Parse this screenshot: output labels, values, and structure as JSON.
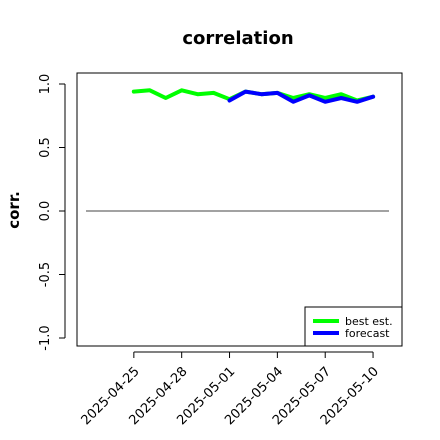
{
  "chart_data": {
    "type": "line",
    "title": "correlation",
    "ylabel": "corr.",
    "xlabel": "",
    "x_ticks": [
      {
        "date": "2025-04-25",
        "label": "2025-04-25",
        "color": "#000000"
      },
      {
        "date": "2025-04-28",
        "label": "2025-04-28",
        "color": "#000000"
      },
      {
        "date": "2025-05-01",
        "label": "2025-05-01",
        "color": "#228B22"
      },
      {
        "date": "2025-05-04",
        "label": "2025-05-04",
        "color": "#000000"
      },
      {
        "date": "2025-05-07",
        "label": "2025-05-07",
        "color": "#000000"
      },
      {
        "date": "2025-05-10",
        "label": "2025-05-10",
        "color": "#000000"
      }
    ],
    "xlim": [
      "2025-04-22",
      "2025-05-11"
    ],
    "ylim": [
      -1.0,
      1.0
    ],
    "y_ticks": [
      -1.0,
      -0.5,
      0.0,
      0.5,
      1.0
    ],
    "y_tick_labels": [
      "-1.0",
      "-0.5",
      "0.0",
      "0.5",
      "1.0"
    ],
    "hline": 0.0,
    "legend_position": "bottom-right",
    "series": [
      {
        "name": "best est.",
        "color": "#00ff00",
        "points": [
          [
            "2025-04-25",
            0.94
          ],
          [
            "2025-04-26",
            0.95
          ],
          [
            "2025-04-27",
            0.89
          ],
          [
            "2025-04-28",
            0.95
          ],
          [
            "2025-04-29",
            0.92
          ],
          [
            "2025-04-30",
            0.93
          ],
          [
            "2025-05-01",
            0.88
          ],
          [
            "2025-05-02",
            0.94
          ],
          [
            "2025-05-03",
            0.92
          ],
          [
            "2025-05-04",
            0.93
          ],
          [
            "2025-05-05",
            0.89
          ],
          [
            "2025-05-06",
            0.92
          ],
          [
            "2025-05-07",
            0.89
          ],
          [
            "2025-05-08",
            0.92
          ],
          [
            "2025-05-09",
            0.87
          ],
          [
            "2025-05-10",
            0.9
          ]
        ]
      },
      {
        "name": "forecast",
        "color": "#0000ff",
        "points": [
          [
            "2025-05-01",
            0.87
          ],
          [
            "2025-05-02",
            0.94
          ],
          [
            "2025-05-03",
            0.92
          ],
          [
            "2025-05-04",
            0.93
          ],
          [
            "2025-05-05",
            0.86
          ],
          [
            "2025-05-06",
            0.91
          ],
          [
            "2025-05-07",
            0.86
          ],
          [
            "2025-05-08",
            0.89
          ],
          [
            "2025-05-09",
            0.86
          ],
          [
            "2025-05-10",
            0.9
          ]
        ]
      }
    ]
  }
}
